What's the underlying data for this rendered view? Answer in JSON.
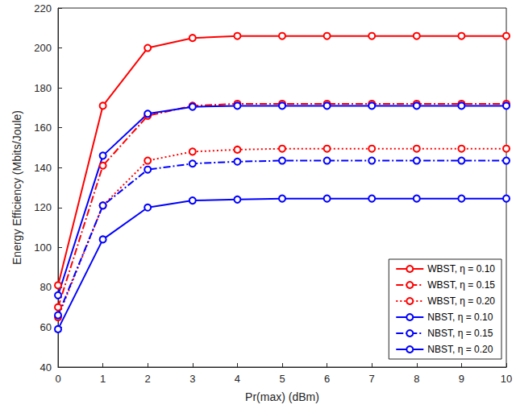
{
  "chart_data": {
    "type": "line",
    "x_label": "Pr(max) (dBm)",
    "y_label": "Energy Efficiency (Mbits/Joule)",
    "x": [
      0,
      1,
      2,
      3,
      4,
      5,
      6,
      7,
      8,
      9,
      10
    ],
    "xlim": [
      0,
      10
    ],
    "xticks": [
      0,
      1,
      2,
      3,
      4,
      5,
      6,
      7,
      8,
      9,
      10
    ],
    "ylim": [
      40,
      220
    ],
    "yticks": [
      40,
      60,
      80,
      100,
      120,
      140,
      160,
      180,
      200,
      220
    ],
    "grid": false,
    "legend": "lower right",
    "marker": "circle",
    "series": [
      {
        "name": "WBST, η = 0.10",
        "color": "#ff0000",
        "line_style": "solid",
        "values": [
          81,
          171,
          200,
          205,
          206,
          206,
          206,
          206,
          206,
          206,
          206
        ]
      },
      {
        "name": "WBST, η = 0.15",
        "color": "#ff0000",
        "line_style": "dashdot",
        "values": [
          70,
          141,
          166,
          171,
          172,
          172,
          172,
          172,
          172,
          172,
          172
        ]
      },
      {
        "name": "WBST, η = 0.20",
        "color": "#ff0000",
        "line_style": "dotted",
        "values": [
          65,
          121,
          143.5,
          148,
          149,
          149.5,
          149.5,
          149.5,
          149.5,
          149.5,
          149.5
        ]
      },
      {
        "name": "NBST, η = 0.10",
        "color": "#0000ff",
        "line_style": "solid",
        "values": [
          76,
          146,
          167,
          170.5,
          171,
          171,
          171,
          171,
          171,
          171,
          171
        ]
      },
      {
        "name": "NBST, η = 0.15",
        "color": "#0000ff",
        "line_style": "dashdot",
        "values": [
          66,
          121,
          139,
          142,
          143,
          143.5,
          143.5,
          143.5,
          143.5,
          143.5,
          143.5
        ]
      },
      {
        "name": "NBST, η = 0.20",
        "color": "#0000ff",
        "line_style": "solid",
        "values": [
          59,
          104,
          120,
          123.5,
          124,
          124.5,
          124.5,
          124.5,
          124.5,
          124.5,
          124.5
        ]
      }
    ]
  }
}
